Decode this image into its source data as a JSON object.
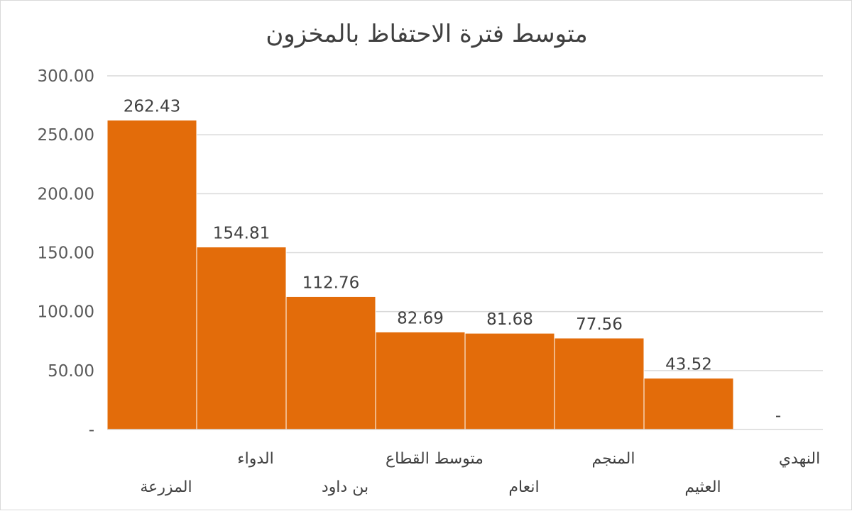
{
  "chart_data": {
    "type": "bar",
    "title": "متوسط فترة الاحتفاظ بالمخزون",
    "xlabel": "",
    "ylabel": "",
    "categories": [
      "المزرعة",
      "الدواء",
      "بن داود",
      "متوسط القطاع",
      "انعام",
      "المنجم",
      "العثيم",
      "النهدي"
    ],
    "values": [
      262.43,
      154.81,
      112.76,
      82.69,
      81.68,
      77.56,
      43.52,
      0
    ],
    "data_labels": [
      "262.43",
      "154.81",
      "112.76",
      "82.69",
      "81.68",
      "77.56",
      "43.52",
      "-"
    ],
    "y_ticks": [
      0,
      50,
      100,
      150,
      200,
      250,
      300
    ],
    "y_tick_labels": [
      "-",
      "50.00",
      "100.00",
      "150.00",
      "200.00",
      "250.00",
      "300.00"
    ],
    "ylim": [
      0,
      300
    ],
    "grid": true,
    "legend": "none",
    "bar_color": "#E36C0A",
    "grid_color": "#D9D9D9"
  }
}
